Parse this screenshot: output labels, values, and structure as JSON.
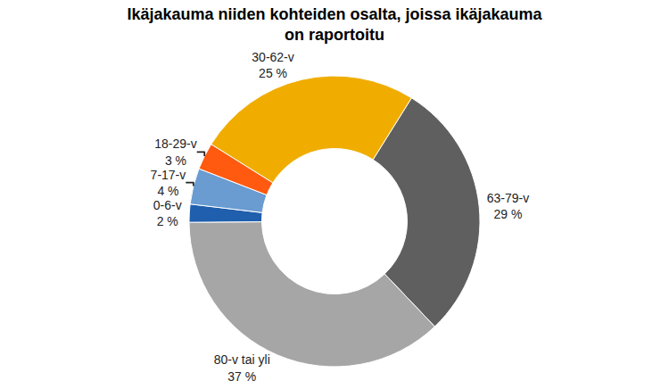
{
  "chart_data": {
    "type": "pie",
    "title": "Ikäjakauma niiden kohteiden osalta, joissa ikäjakauma\non raportoitu",
    "categories": [
      "63-79-v",
      "80-v tai yli",
      "0-6-v",
      "7-17-v",
      "18-29-v",
      "30-62-v"
    ],
    "values": [
      29,
      37,
      2,
      4,
      3,
      25
    ],
    "value_labels": [
      "29 %",
      "37 %",
      "2 %",
      "4 %",
      "3 %",
      "25 %"
    ],
    "colors": [
      "#5f5f5f",
      "#a6a6a6",
      "#1f5fad",
      "#6a9bd1",
      "#ff5a10",
      "#f0ad00"
    ],
    "data_labels": true
  }
}
